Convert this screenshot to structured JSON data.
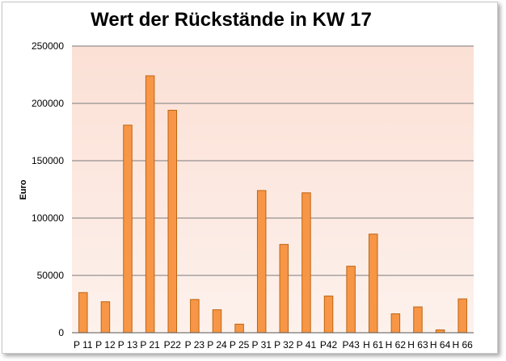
{
  "chart_data": {
    "type": "bar",
    "title": "Wert der Rückstände in KW 17",
    "xlabel": "",
    "ylabel": "Euro",
    "ylim": [
      0,
      250000
    ],
    "yticks": [
      0,
      50000,
      100000,
      150000,
      200000,
      250000
    ],
    "grid": true,
    "legend": "none",
    "categories": [
      "P 11",
      "P 12",
      "P 13",
      "P 21",
      "P22",
      "P 23",
      "P 24",
      "P 25",
      "P 31",
      "P 32",
      "P 41",
      "P42",
      "P43",
      "H 61",
      "H 62",
      "H 63",
      "H 64",
      "H 66"
    ],
    "series": [
      {
        "values": [
          35000,
          27000,
          181000,
          224000,
          194000,
          29000,
          20000,
          7500,
          124000,
          77000,
          122000,
          32000,
          58000,
          86000,
          16500,
          22500,
          2500,
          29500
        ]
      }
    ],
    "colors": {
      "bar_fill": "#f79646",
      "bar_stroke": "#c0640f",
      "plot_bg_top": "#fbe0d5",
      "plot_bg_bottom": "#fdf1ec",
      "gridline": "#7a7a7a"
    }
  }
}
